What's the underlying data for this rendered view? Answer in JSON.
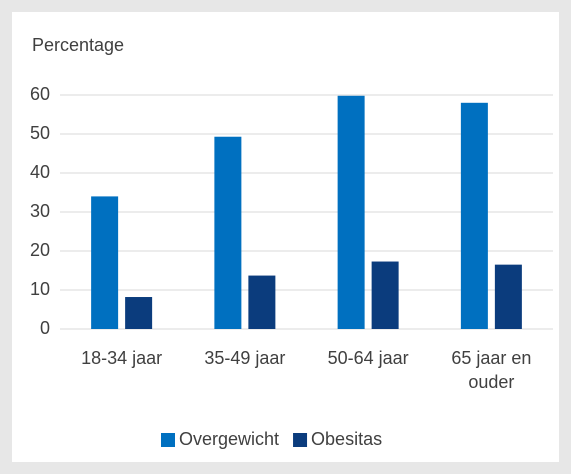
{
  "chart_data": {
    "type": "bar",
    "title": "Percentage",
    "categories": [
      "18-34 jaar",
      "35-49 jaar",
      "50-64 jaar",
      "65 jaar en ouder"
    ],
    "series": [
      {
        "name": "Overgewicht",
        "color": "#0070c0",
        "values": [
          34,
          49.3,
          59.8,
          58
        ]
      },
      {
        "name": "Obesitas",
        "color": "#0b3c7d",
        "values": [
          8.2,
          13.7,
          17.3,
          16.5
        ]
      }
    ],
    "ylim": [
      0,
      60
    ],
    "yticks": [
      0,
      10,
      20,
      30,
      40,
      50,
      60
    ],
    "grid": true,
    "legend": "bottom"
  }
}
